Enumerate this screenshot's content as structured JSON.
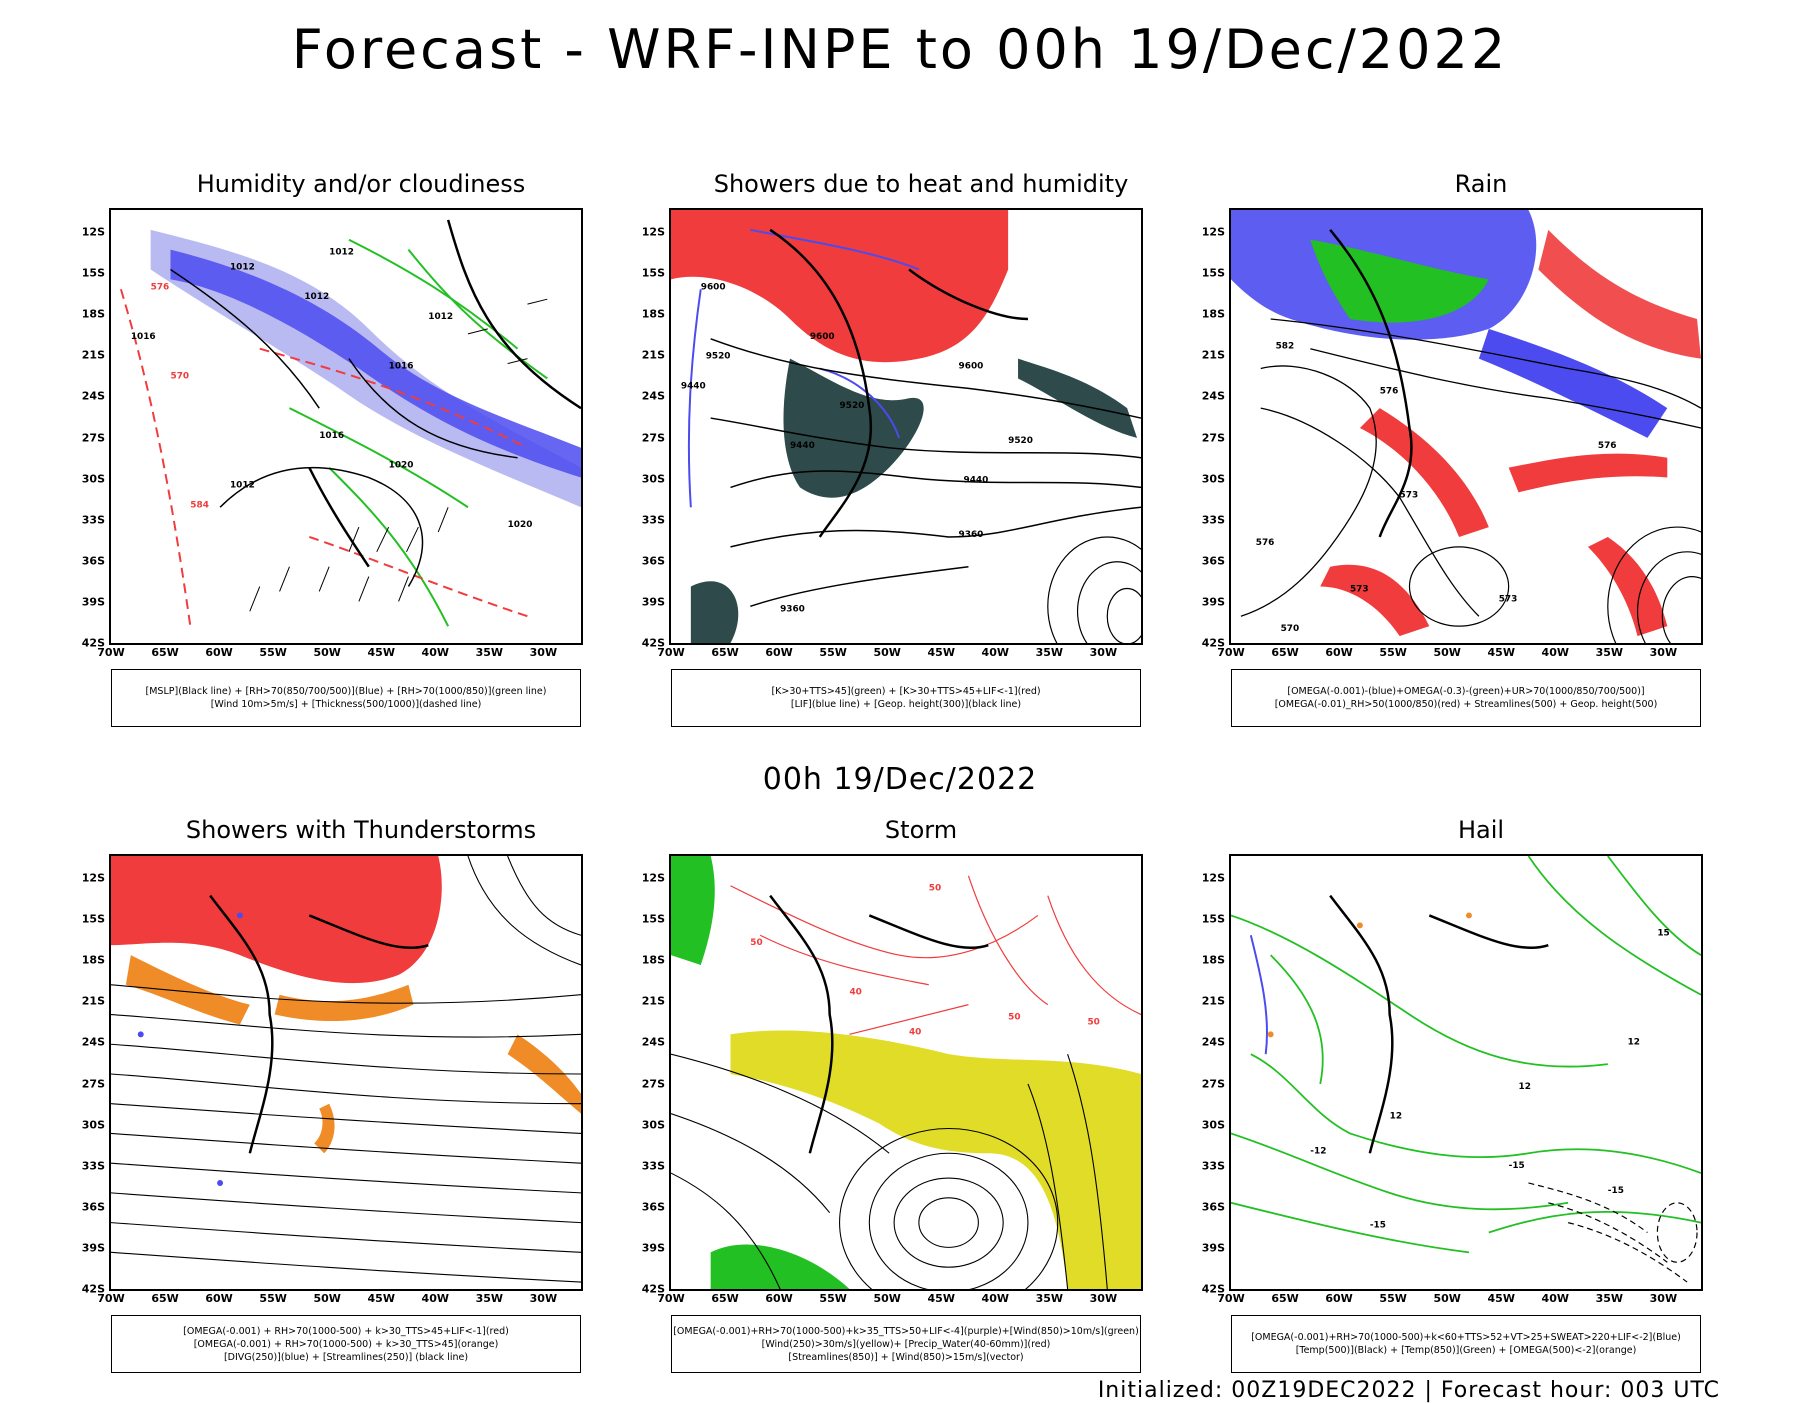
{
  "header": {
    "title": "Forecast - WRF-INPE to 00h 19/Dec/2022",
    "subtitle": "00h 19/Dec/2022",
    "footer": "Initialized: 00Z19DEC2022 | Forecast hour: 003 UTC"
  },
  "axes": {
    "lat_labels": [
      "12S",
      "15S",
      "18S",
      "21S",
      "24S",
      "27S",
      "30S",
      "33S",
      "36S",
      "39S",
      "42S"
    ],
    "lon_labels": [
      "70W",
      "65W",
      "60W",
      "55W",
      "50W",
      "45W",
      "40W",
      "35W",
      "30W"
    ]
  },
  "panels": [
    {
      "title": "Humidity and/or cloudiness",
      "legend": [
        "[MSLP](Black line) + [RH>70(850/700/500)](Blue) + [RH>70(1000/850)](green line)",
        "[Wind 10m>5m/s] + [Thickness(500/1000)](dashed line)"
      ],
      "labels": [
        "1012",
        "1012",
        "1012",
        "1012",
        "1012",
        "1016",
        "1016",
        "1016",
        "1020",
        "1020",
        "570",
        "576",
        "584"
      ]
    },
    {
      "title": "Showers due to heat and humidity",
      "legend": [
        "[K>30+TTS>45](green) + [K>30+TTS>45+LIF<-1](red)",
        "[LIF](blue line) + [Geop. height(300)](black line)"
      ],
      "labels": [
        "9600",
        "9600",
        "9600",
        "9520",
        "9520",
        "9520",
        "9440",
        "9440",
        "9440",
        "9360",
        "9360"
      ]
    },
    {
      "title": "Rain",
      "legend": [
        "[OMEGA(-0.001)-(blue)+OMEGA(-0.3)-(green)+UR>70(1000/850/700/500)]",
        "[OMEGA(-0.01)_RH>50(1000/850)(red) + Streamlines(500) + Geop. height(500)"
      ],
      "labels": [
        "582",
        "576",
        "576",
        "573",
        "573",
        "573",
        "570",
        "576"
      ]
    },
    {
      "title": "Showers with Thunderstorms",
      "legend": [
        "[OMEGA(-0.001) + RH>70(1000-500) + k>30_TTS>45+LIF<-1](red)",
        "[OMEGA(-0.001) + RH>70(1000-500) + k>30_TTS>45](orange)",
        "[DIVG(250)](blue) + [Streamlines(250)] (black line)"
      ],
      "labels": []
    },
    {
      "title": "Storm",
      "legend": [
        "[OMEGA(-0.001)+RH>70(1000-500)+k>35_TTS>50+LIF<-4](purple)+[Wind(850)>10m/s](green)",
        "[Wind(250)>30m/s](yellow)+ [Precip_Water(40-60mm)](red)",
        "[Streamlines(850)] + [Wind(850)>15m/s](vector)"
      ],
      "labels": [
        "50",
        "50",
        "40",
        "40",
        "50",
        "50"
      ]
    },
    {
      "title": "Hail",
      "legend": [
        "[OMEGA(-0.001)+RH>70(1000-500)+k<60+TTS>52+VT>25+SWEAT>220+LIF<-2](Blue)",
        "[Temp(500)](Black) + [Temp(850)](Green) + [OMEGA(500)<-2](orange)"
      ],
      "labels": [
        "12",
        "12",
        "12",
        "-12",
        "-15",
        "-15",
        "-15",
        "15"
      ]
    }
  ],
  "colors": {
    "blue": "#4b4bf0",
    "light_blue": "#a9a9f0",
    "green": "#22c022",
    "red": "#f03c3c",
    "dark_teal": "#2e4a4a",
    "orange": "#f08c28",
    "yellow": "#e0dc28",
    "black": "#000000"
  }
}
